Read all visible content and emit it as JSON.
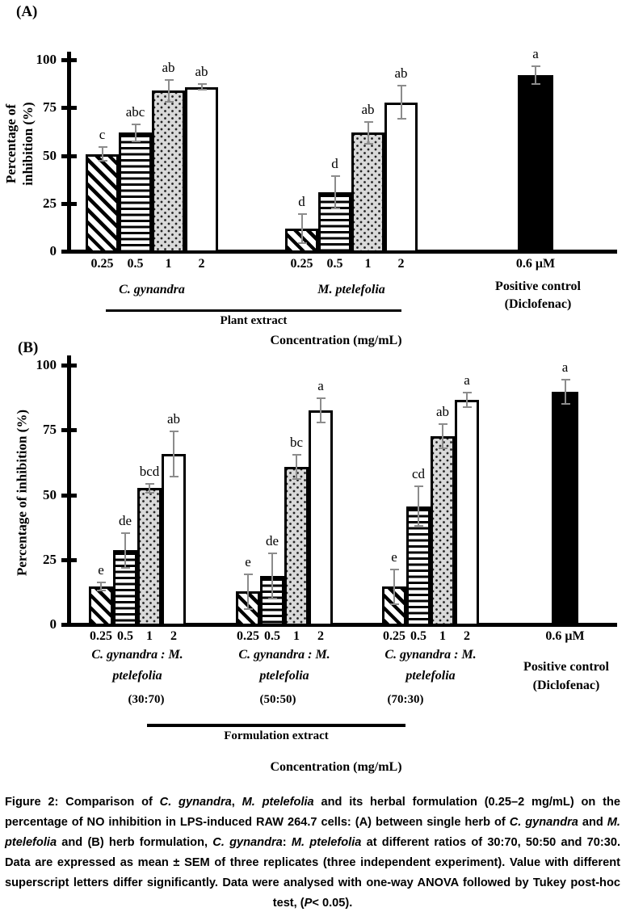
{
  "colors": {
    "ink": "#000000",
    "background": "#ffffff",
    "dotted_bar_fill": "#d9d9d9",
    "error_bar": "#8c8c8c"
  },
  "chart_data": [
    {
      "type": "bar",
      "panel": "A",
      "panel_tag": "(A)",
      "ylabel_lines": [
        "Percentage of",
        "inhibition (%)"
      ],
      "xlabel": "Concentration (mg/mL)",
      "ylim": [
        0,
        100
      ],
      "yticks": [
        0,
        25,
        50,
        75,
        100
      ],
      "categories": [
        "0.25",
        "0.5",
        "1",
        "2"
      ],
      "bar_patterns": [
        "diag",
        "horiz",
        "dots",
        "white"
      ],
      "legend_position": "none",
      "grid": false,
      "groups": [
        {
          "name_lines": [
            "C. gynandra"
          ],
          "values": [
            50,
            61,
            83,
            85
          ],
          "errors": [
            4,
            5,
            6,
            2
          ],
          "letters": [
            "c",
            "abc",
            "ab",
            "ab"
          ]
        },
        {
          "name_lines": [
            "M. ptelefolia"
          ],
          "values": [
            11,
            30,
            61,
            77
          ],
          "errors": [
            8,
            9,
            6,
            9
          ],
          "letters": [
            "d",
            "d",
            "ab",
            "ab"
          ]
        }
      ],
      "control": {
        "tick_label": "0.6 μM",
        "name_lines": [
          "Positive control",
          "(Diclofenac)"
        ],
        "value": 91,
        "error": 5,
        "letter": "a",
        "pattern": "black"
      },
      "bracket_label": "Plant extract"
    },
    {
      "type": "bar",
      "panel": "B",
      "panel_tag": "(B)",
      "ylabel_lines": [
        "Percentage of inhibition (%)"
      ],
      "xlabel": "Concentration (mg/mL)",
      "ylim": [
        0,
        100
      ],
      "yticks": [
        0,
        25,
        50,
        75,
        100
      ],
      "categories": [
        "0.25",
        "0.5",
        "1",
        "2"
      ],
      "bar_patterns": [
        "diag",
        "horiz",
        "dots",
        "white"
      ],
      "legend_position": "none",
      "grid": false,
      "groups": [
        {
          "name_lines": [
            "C. gynandra : M.",
            "ptelefolia"
          ],
          "ratio": "(30:70)",
          "values": [
            14,
            28,
            52,
            65
          ],
          "errors": [
            2,
            7,
            2,
            9
          ],
          "letters": [
            "e",
            "de",
            "bcd",
            "ab"
          ]
        },
        {
          "name_lines": [
            "C. gynandra : M.",
            "ptelefolia"
          ],
          "ratio": "(50:50)",
          "values": [
            12,
            18,
            60,
            82
          ],
          "errors": [
            7,
            9,
            5,
            5
          ],
          "letters": [
            "e",
            "de",
            "bc",
            "a"
          ]
        },
        {
          "name_lines": [
            "C. gynandra : M.",
            "ptelefolia"
          ],
          "ratio": "(70:30)",
          "values": [
            14,
            45,
            72,
            86
          ],
          "errors": [
            7,
            8,
            5,
            3
          ],
          "letters": [
            "e",
            "cd",
            "ab",
            "a"
          ]
        }
      ],
      "control": {
        "tick_label": "0.6 μM",
        "name_lines": [
          "Positive control",
          "(Diclofenac)"
        ],
        "value": 89,
        "error": 5,
        "letter": "a",
        "pattern": "black"
      },
      "bracket_label": "Formulation extract"
    }
  ],
  "caption": {
    "segments": [
      {
        "t": "Figure 2: Comparison of ",
        "i": false
      },
      {
        "t": "C. gynandra",
        "i": true
      },
      {
        "t": ", ",
        "i": false
      },
      {
        "t": "M. ptelefolia",
        "i": true
      },
      {
        "t": " and its herbal formulation (0.25–2 mg/mL) on the percentage of NO inhibition in LPS-induced RAW 264.7 cells: (A) between single herb of ",
        "i": false
      },
      {
        "t": "C. gynandra",
        "i": true
      },
      {
        "t": " and ",
        "i": false
      },
      {
        "t": "M. ptelefolia",
        "i": true
      },
      {
        "t": " and (B) herb formulation, ",
        "i": false
      },
      {
        "t": "C. gynandra",
        "i": true
      },
      {
        "t": ": ",
        "i": false
      },
      {
        "t": "M. ptelefolia",
        "i": true
      },
      {
        "t": " at different ratios of 30:70, 50:50 and 70:30. Data are expressed as mean ± SEM of three replicates (three independent experiment). Value with different superscript letters differ significantly. Data were analysed with one-way ANOVA followed by Tukey post-hoc test, (",
        "i": false
      },
      {
        "t": "P",
        "i": true
      },
      {
        "t": "< 0.05).",
        "i": false
      }
    ]
  }
}
